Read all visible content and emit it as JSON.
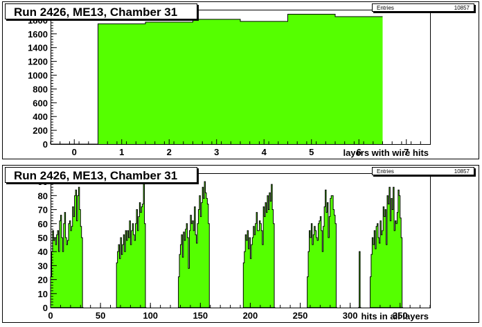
{
  "chart_data": [
    {
      "type": "bar",
      "title": "Run 2426, ME13, Chamber 31",
      "xlabel": "layers with wire hits",
      "ylabel": "",
      "stats": {
        "label": "Entries",
        "value": "10857"
      },
      "xlim": [
        -0.5,
        7.5
      ],
      "ylim": [
        0,
        1950
      ],
      "xticks": [
        0,
        1,
        2,
        3,
        4,
        5,
        6,
        7
      ],
      "yticks": [
        0,
        200,
        400,
        600,
        800,
        1000,
        1200,
        1400,
        1600,
        1800
      ],
      "categories": [
        0,
        1,
        2,
        3,
        4,
        5,
        6
      ],
      "values": [
        0,
        1745,
        1770,
        1810,
        1780,
        1885,
        1850
      ],
      "fill_color": "#55ff00",
      "grid": false
    },
    {
      "type": "bar",
      "title": "Run 2426, ME13, Chamber 31",
      "xlabel": "hits in all layers",
      "ylabel": "",
      "stats": {
        "label": "Entries",
        "value": "10857"
      },
      "xlim": [
        0,
        380
      ],
      "ylim": [
        0,
        96
      ],
      "xticks": [
        0,
        50,
        100,
        150,
        200,
        250,
        300,
        350
      ],
      "yticks": [
        0,
        10,
        20,
        30,
        40,
        50,
        60,
        70,
        80,
        90
      ],
      "bin_width": 1,
      "clusters": [
        {
          "start": 0,
          "values": [
            22,
            40,
            55,
            48,
            50,
            45,
            52,
            55,
            40,
            62,
            66,
            50,
            40,
            60,
            68,
            50,
            45,
            48,
            60,
            62,
            55,
            58,
            72,
            65,
            80,
            84,
            62,
            80,
            86,
            70,
            58,
            50,
            0
          ]
        },
        {
          "start": 66,
          "values": [
            32,
            40,
            45,
            35,
            50,
            38,
            45,
            52,
            40,
            55,
            48,
            55,
            50,
            62,
            45,
            55,
            60,
            52,
            48,
            60,
            70,
            55,
            65,
            75,
            68,
            72,
            74,
            91,
            60,
            0
          ]
        },
        {
          "start": 128,
          "values": [
            22,
            38,
            45,
            52,
            36,
            54,
            48,
            56,
            60,
            50,
            28,
            55,
            66,
            60,
            62,
            55,
            72,
            52,
            46,
            60,
            70,
            80,
            65,
            75,
            86,
            78,
            90,
            82,
            78,
            74,
            60,
            0
          ]
        },
        {
          "start": 193,
          "values": [
            32,
            40,
            52,
            48,
            55,
            42,
            50,
            35,
            45,
            50,
            58,
            52,
            60,
            68,
            55,
            55,
            62,
            60,
            55,
            45,
            72,
            65,
            75,
            68,
            80,
            70,
            82,
            76,
            88,
            70,
            60,
            0
          ]
        },
        {
          "start": 257,
          "values": [
            22,
            40,
            55,
            50,
            60,
            45,
            52,
            58,
            55,
            50,
            48,
            60,
            62,
            65,
            55,
            40,
            58,
            72,
            84,
            68,
            75,
            50,
            65,
            78,
            80,
            80,
            70,
            66,
            60,
            0
          ]
        },
        {
          "start": 308,
          "values": [
            0,
            40,
            0
          ]
        },
        {
          "start": 320,
          "values": [
            22,
            38,
            50,
            45,
            55,
            42,
            58,
            60,
            50,
            46,
            62,
            52,
            55,
            72,
            65,
            70,
            45,
            80,
            74,
            86,
            62,
            78,
            70,
            86,
            55,
            62,
            60,
            68,
            84,
            80,
            64,
            50,
            0
          ]
        }
      ],
      "fill_color": "#55ff00",
      "grid": false
    }
  ]
}
